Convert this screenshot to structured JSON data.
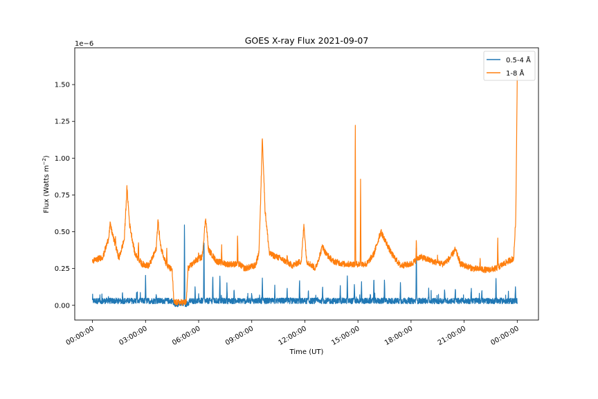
{
  "chart_data": {
    "type": "line",
    "title": "GOES X-ray Flux 2021-09-07",
    "xlabel": "Time (UT)",
    "ylabel_main": "Flux (Watts m",
    "ylabel_sup": "−2",
    "ylabel_end": ")",
    "offset_label": "1e−6",
    "x_unit": "hours",
    "xlim": [
      -1.0,
      25.2
    ],
    "ylim": [
      -0.1,
      1.75
    ],
    "xticks": [
      {
        "x": 0,
        "label": "00:00:00"
      },
      {
        "x": 3,
        "label": "03:00:00"
      },
      {
        "x": 6,
        "label": "06:00:00"
      },
      {
        "x": 9,
        "label": "09:00:00"
      },
      {
        "x": 12,
        "label": "12:00:00"
      },
      {
        "x": 15,
        "label": "15:00:00"
      },
      {
        "x": 18,
        "label": "18:00:00"
      },
      {
        "x": 21,
        "label": "21:00:00"
      },
      {
        "x": 24,
        "label": "00:00:00"
      }
    ],
    "yticks": [
      {
        "y": 0.0,
        "label": "0.00"
      },
      {
        "y": 0.25,
        "label": "0.25"
      },
      {
        "y": 0.5,
        "label": "0.50"
      },
      {
        "y": 0.75,
        "label": "0.75"
      },
      {
        "y": 1.0,
        "label": "1.00"
      },
      {
        "y": 1.25,
        "label": "1.25"
      },
      {
        "y": 1.5,
        "label": "1.50"
      }
    ],
    "legend_position": "top-right",
    "grid": false,
    "series": [
      {
        "name": "0.5-4 Å",
        "color": "#1f77b4",
        "baseline": 0.03,
        "noise": 0.025,
        "segments": [
          [
            0.0,
            0.03
          ],
          [
            4.5,
            0.03
          ],
          [
            4.6,
            0.01
          ],
          [
            5.4,
            0.01
          ],
          [
            5.5,
            0.03
          ],
          [
            24.0,
            0.03
          ]
        ],
        "spikes": [
          [
            0.9,
            0.06
          ],
          [
            1.7,
            0.09
          ],
          [
            2.5,
            0.09
          ],
          [
            3.0,
            0.19
          ],
          [
            3.6,
            0.09
          ],
          [
            5.2,
            0.6
          ],
          [
            5.8,
            0.12
          ],
          [
            6.3,
            0.5
          ],
          [
            6.8,
            0.22
          ],
          [
            7.2,
            0.2
          ],
          [
            7.6,
            0.15
          ],
          [
            8.0,
            0.11
          ],
          [
            9.0,
            0.09
          ],
          [
            9.6,
            0.18
          ],
          [
            10.3,
            0.13
          ],
          [
            11.0,
            0.11
          ],
          [
            11.7,
            0.18
          ],
          [
            12.2,
            0.1
          ],
          [
            13.0,
            0.13
          ],
          [
            14.0,
            0.13
          ],
          [
            14.4,
            0.2
          ],
          [
            14.8,
            0.16
          ],
          [
            15.2,
            0.16
          ],
          [
            15.9,
            0.2
          ],
          [
            16.5,
            0.18
          ],
          [
            17.4,
            0.16
          ],
          [
            18.3,
            0.48
          ],
          [
            19.0,
            0.12
          ],
          [
            19.9,
            0.12
          ],
          [
            20.5,
            0.13
          ],
          [
            21.4,
            0.12
          ],
          [
            22.0,
            0.11
          ],
          [
            22.8,
            0.19
          ],
          [
            23.5,
            0.1
          ],
          [
            23.9,
            0.15
          ]
        ]
      },
      {
        "name": "1-8 Å",
        "color": "#ff7f0e",
        "noise": 0.03,
        "segments": [
          [
            0.0,
            0.3
          ],
          [
            0.6,
            0.33
          ],
          [
            0.9,
            0.45
          ],
          [
            1.0,
            0.55
          ],
          [
            1.2,
            0.45
          ],
          [
            1.5,
            0.32
          ],
          [
            1.8,
            0.45
          ],
          [
            1.95,
            0.8
          ],
          [
            2.1,
            0.55
          ],
          [
            2.4,
            0.35
          ],
          [
            2.8,
            0.28
          ],
          [
            3.2,
            0.27
          ],
          [
            3.6,
            0.38
          ],
          [
            3.7,
            0.58
          ],
          [
            3.85,
            0.4
          ],
          [
            4.2,
            0.27
          ],
          [
            4.5,
            0.24
          ],
          [
            4.6,
            0.02
          ],
          [
            5.3,
            0.02
          ],
          [
            5.4,
            0.25
          ],
          [
            5.8,
            0.3
          ],
          [
            6.2,
            0.33
          ],
          [
            6.4,
            0.6
          ],
          [
            6.55,
            0.38
          ],
          [
            7.0,
            0.3
          ],
          [
            7.6,
            0.28
          ],
          [
            8.3,
            0.28
          ],
          [
            8.6,
            0.25
          ],
          [
            9.2,
            0.27
          ],
          [
            9.4,
            0.35
          ],
          [
            9.5,
            0.7
          ],
          [
            9.6,
            1.15
          ],
          [
            9.75,
            0.65
          ],
          [
            10.0,
            0.35
          ],
          [
            10.6,
            0.32
          ],
          [
            11.3,
            0.27
          ],
          [
            11.8,
            0.3
          ],
          [
            11.95,
            0.55
          ],
          [
            12.1,
            0.3
          ],
          [
            12.6,
            0.25
          ],
          [
            13.0,
            0.4
          ],
          [
            13.2,
            0.35
          ],
          [
            13.6,
            0.3
          ],
          [
            14.2,
            0.28
          ],
          [
            15.5,
            0.28
          ],
          [
            15.9,
            0.35
          ],
          [
            16.3,
            0.5
          ],
          [
            16.5,
            0.45
          ],
          [
            16.9,
            0.35
          ],
          [
            17.4,
            0.27
          ],
          [
            18.0,
            0.28
          ],
          [
            18.5,
            0.33
          ],
          [
            19.2,
            0.3
          ],
          [
            19.8,
            0.28
          ],
          [
            20.2,
            0.32
          ],
          [
            20.5,
            0.38
          ],
          [
            20.8,
            0.28
          ],
          [
            21.5,
            0.25
          ],
          [
            22.3,
            0.24
          ],
          [
            22.8,
            0.25
          ],
          [
            23.5,
            0.3
          ],
          [
            23.8,
            0.32
          ],
          [
            23.92,
            0.6
          ],
          [
            24.0,
            1.55
          ]
        ],
        "spikes": [
          [
            0.7,
            0.38
          ],
          [
            1.3,
            0.47
          ],
          [
            2.6,
            0.46
          ],
          [
            4.2,
            0.38
          ],
          [
            6.0,
            0.35
          ],
          [
            7.3,
            0.4
          ],
          [
            8.2,
            0.5
          ],
          [
            11.0,
            0.35
          ],
          [
            13.0,
            0.42
          ],
          [
            14.85,
            1.33
          ],
          [
            15.15,
            0.9
          ],
          [
            16.2,
            0.48
          ],
          [
            18.3,
            0.45
          ],
          [
            19.5,
            0.33
          ],
          [
            21.9,
            0.32
          ],
          [
            22.9,
            0.48
          ]
        ]
      }
    ]
  }
}
